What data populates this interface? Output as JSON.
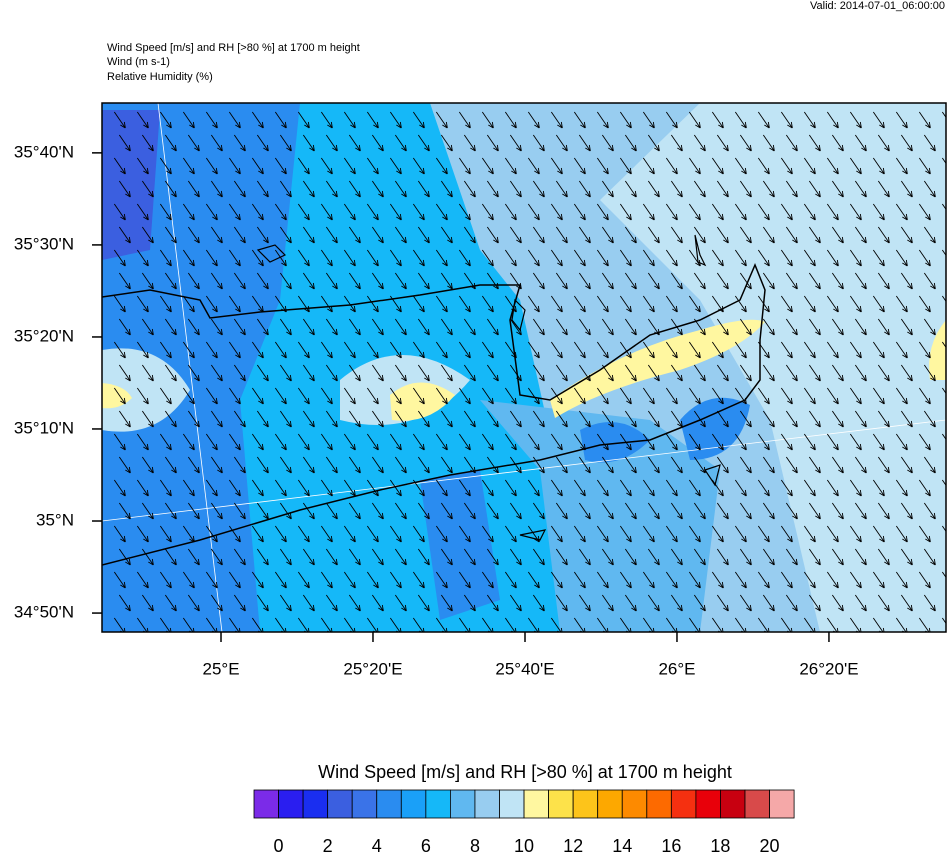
{
  "header": {
    "valid": "Valid: 2014-07-01_06:00:00",
    "lines": [
      "Wind Speed [m/s] and RH [>80 %] at 1700 m height",
      "Wind   (m s-1)",
      "Relative Humidity   (%)"
    ]
  },
  "map": {
    "xlim": [
      24.739,
      26.59
    ],
    "ylim": [
      34.799,
      35.757
    ],
    "xticks": [
      {
        "value": 25,
        "label": "25°E"
      },
      {
        "value": 25.3333,
        "label": "25°20'E"
      },
      {
        "value": 25.6667,
        "label": "25°40'E"
      },
      {
        "value": 26,
        "label": "26°E"
      },
      {
        "value": 26.3333,
        "label": "26°20'E"
      }
    ],
    "yticks": [
      {
        "value": 34.8333,
        "label": "34°50'N"
      },
      {
        "value": 35,
        "label": "35°N"
      },
      {
        "value": 35.1667,
        "label": "35°10'N"
      },
      {
        "value": 35.3333,
        "label": "35°20'N"
      },
      {
        "value": 35.5,
        "label": "35°30'N"
      },
      {
        "value": 35.6667,
        "label": "35°40'N"
      }
    ]
  },
  "colorbar": {
    "title": "Wind Speed [m/s] and RH [>80 %] at 1700 m height",
    "colors": [
      "#7b2be8",
      "#2a1ef0",
      "#1a2ef0",
      "#3b5fe0",
      "#3a73e8",
      "#2a8cf0",
      "#1aa0f8",
      "#15b8f8",
      "#60b8f0",
      "#98cdf0",
      "#c0e4f5",
      "#fff7a0",
      "#fde24a",
      "#fdc41a",
      "#fda800",
      "#fd8a00",
      "#fd6a00",
      "#f53010",
      "#e8000a",
      "#c80010",
      "#d84a4a",
      "#f5a8a8"
    ],
    "ticks": [
      0,
      2,
      4,
      6,
      8,
      10,
      12,
      14,
      16,
      18,
      20
    ]
  }
}
